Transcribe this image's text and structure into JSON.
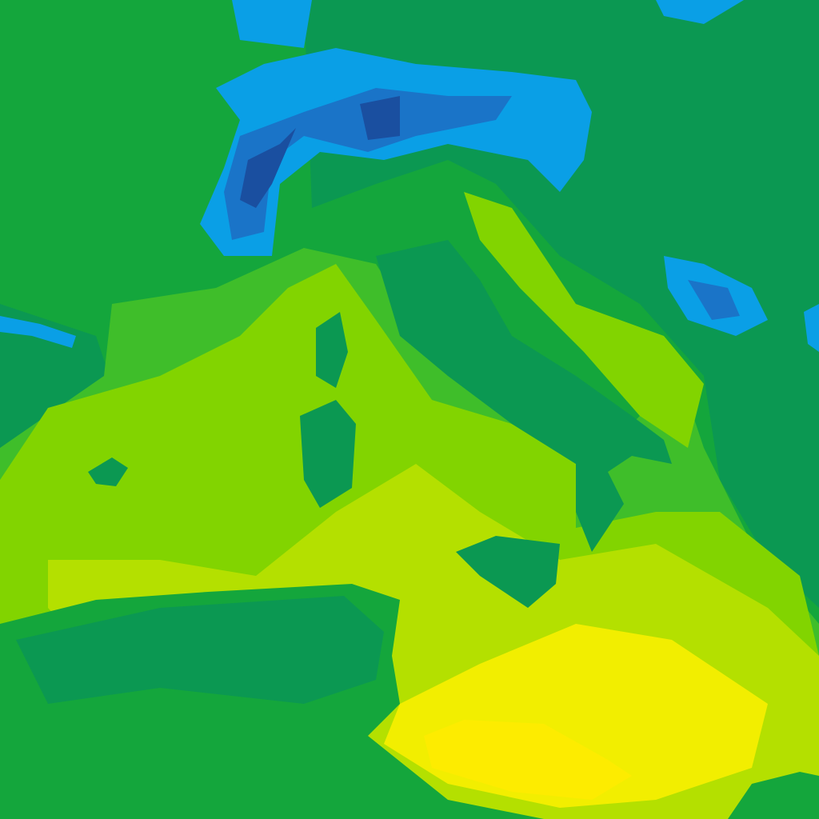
{
  "map": {
    "colors": {
      "land": "#14a63c",
      "land_dark": "#0b9852",
      "sea_cool": "#3fbe2a",
      "sea": "#82d400",
      "sea_warm": "#b4e000",
      "hot": "#f2ee00",
      "cold": "#0a9fe6",
      "colder": "#1a74c8",
      "coldest": "#1a4fa0"
    }
  }
}
